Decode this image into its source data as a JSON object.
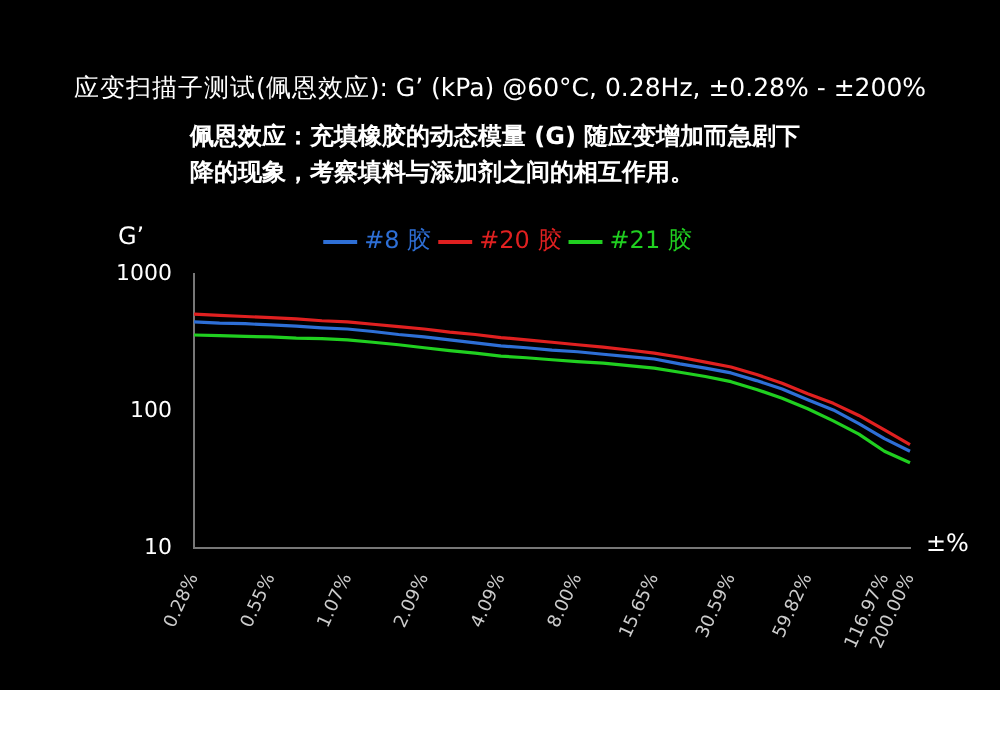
{
  "chart_data": {
    "type": "line",
    "title": "应变扫描子测试(佩恩效应): G’ (kPa) @60°C, 0.28Hz, ±0.28% - ±200%",
    "subtitle": "佩恩效应：充填橡胶的动态模量 (G) 随应变增加而急剧下降的现象，考察填料与添加剂之间的相互作用。",
    "ylabel": "G’",
    "xlabel": "±%",
    "categories": [
      "0.28%",
      null,
      null,
      "0.55%",
      null,
      null,
      "1.07%",
      null,
      null,
      "2.09%",
      null,
      null,
      "4.09%",
      null,
      null,
      "8.00%",
      null,
      null,
      "15.65%",
      null,
      null,
      "30.59%",
      null,
      null,
      "59.82%",
      null,
      null,
      "116.97%",
      "200.00%"
    ],
    "series": [
      {
        "name": "#8 胶",
        "color": "#2e6fd6",
        "values": [
          447,
          438,
          434,
          425,
          417,
          405,
          397,
          381,
          362,
          348,
          331,
          315,
          299,
          290,
          279,
          271,
          260,
          250,
          240,
          221,
          206,
          190,
          167,
          145,
          121,
          102,
          81,
          63,
          51
        ]
      },
      {
        "name": "#20 胶",
        "color": "#e02020",
        "values": [
          510,
          500,
          490,
          480,
          470,
          456,
          447,
          430,
          413,
          397,
          377,
          362,
          344,
          331,
          318,
          305,
          293,
          279,
          265,
          247,
          228,
          210,
          185,
          160,
          134,
          114,
          93,
          73,
          57
        ]
      },
      {
        "name": "#21 胶",
        "color": "#20d020",
        "values": [
          359,
          355,
          351,
          348,
          341,
          338,
          331,
          318,
          305,
          290,
          276,
          265,
          252,
          245,
          237,
          230,
          224,
          215,
          206,
          192,
          179,
          164,
          144,
          124,
          104,
          85,
          68,
          51,
          42
        ]
      }
    ],
    "log": "y",
    "ylim": [
      10,
      1000
    ],
    "yticks": [
      10,
      100,
      1000
    ],
    "grid": false,
    "legend": "top",
    "marker": "none",
    "line_style": "solid"
  }
}
